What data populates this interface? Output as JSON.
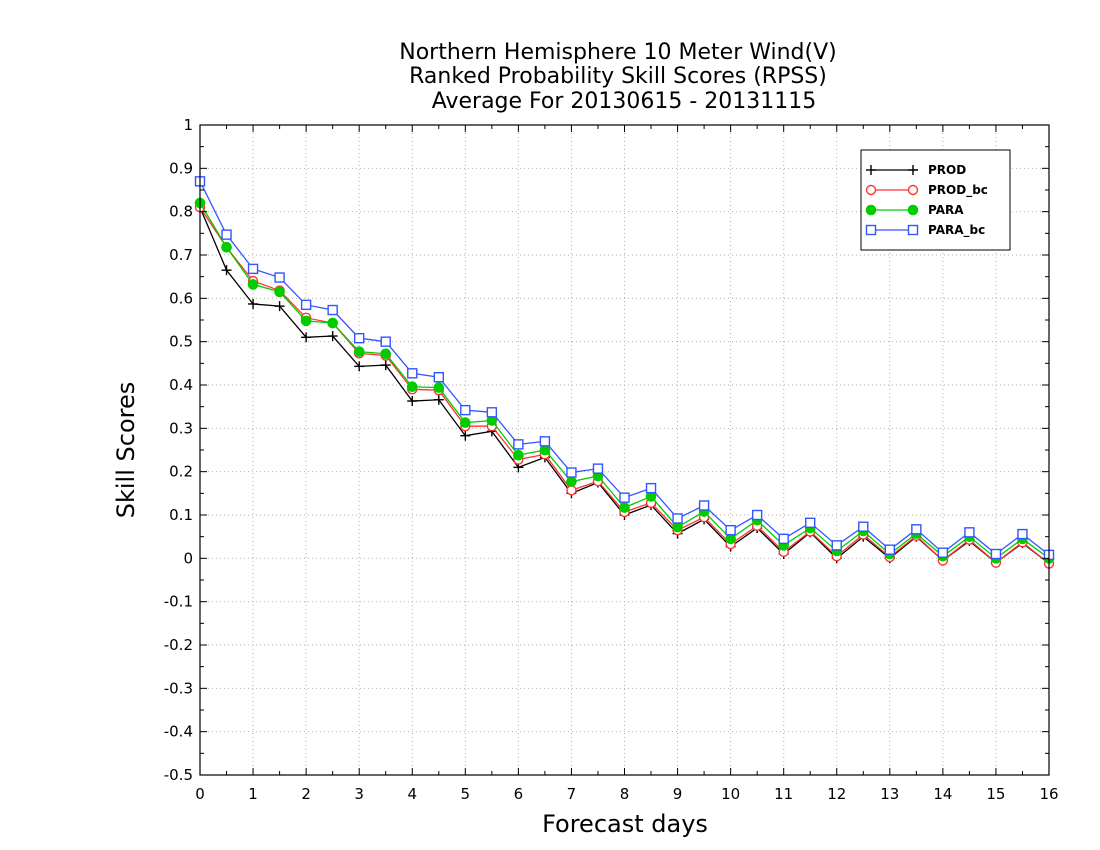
{
  "chart_data": {
    "type": "line",
    "title_lines": [
      "Northern Hemisphere 10 Meter Wind(V)",
      "Ranked Probability Skill Scores (RPSS)",
      "Average For 20130615 - 20131115"
    ],
    "xlabel": "Forecast days",
    "ylabel": "Skill Scores",
    "xlim": [
      0,
      16
    ],
    "ylim": [
      -0.5,
      1
    ],
    "x_ticks": [
      "0",
      "1",
      "2",
      "3",
      "4",
      "5",
      "6",
      "7",
      "8",
      "9",
      "10",
      "11",
      "12",
      "13",
      "14",
      "15",
      "16"
    ],
    "y_ticks": [
      "1",
      "0.9",
      "0.8",
      "0.7",
      "0.6",
      "0.5",
      "0.4",
      "0.3",
      "0.2",
      "0.1",
      "0",
      "-0.1",
      "-0.2",
      "-0.3",
      "-0.4",
      "-0.5"
    ],
    "grid": true,
    "legend_position": "top-right",
    "x": [
      0,
      0.5,
      1,
      1.5,
      2,
      2.5,
      3,
      3.5,
      4,
      4.5,
      5,
      5.5,
      6,
      6.5,
      7,
      7.5,
      8,
      8.5,
      9,
      9.5,
      10,
      10.5,
      11,
      11.5,
      12,
      12.5,
      13,
      13.5,
      14,
      14.5,
      15,
      15.5,
      16
    ],
    "series": [
      {
        "name": "PROD",
        "color": "#000000",
        "marker": "plus",
        "values": [
          0.81,
          0.665,
          0.587,
          0.582,
          0.51,
          0.513,
          0.443,
          0.446,
          0.363,
          0.366,
          0.283,
          0.293,
          0.21,
          0.233,
          0.15,
          0.175,
          0.1,
          0.123,
          0.057,
          0.09,
          0.027,
          0.07,
          0.01,
          0.06,
          0.0,
          0.05,
          0.0,
          0.05,
          -0.005,
          0.04,
          -0.01,
          0.035,
          -0.012
        ]
      },
      {
        "name": "PROD_bc",
        "color": "#ff3333",
        "marker": "open-circle",
        "values": [
          0.81,
          0.718,
          0.64,
          0.618,
          0.555,
          0.543,
          0.473,
          0.468,
          0.39,
          0.388,
          0.305,
          0.305,
          0.228,
          0.24,
          0.157,
          0.178,
          0.107,
          0.128,
          0.065,
          0.095,
          0.033,
          0.075,
          0.015,
          0.062,
          0.005,
          0.055,
          0.003,
          0.052,
          -0.005,
          0.043,
          -0.01,
          0.037,
          -0.012
        ]
      },
      {
        "name": "PARA",
        "color": "#00cc00",
        "marker": "filled-circle",
        "values": [
          0.82,
          0.718,
          0.632,
          0.615,
          0.548,
          0.543,
          0.477,
          0.472,
          0.396,
          0.394,
          0.313,
          0.318,
          0.238,
          0.25,
          0.177,
          0.19,
          0.117,
          0.143,
          0.072,
          0.108,
          0.045,
          0.088,
          0.03,
          0.07,
          0.017,
          0.063,
          0.01,
          0.057,
          0.005,
          0.05,
          0.0,
          0.045,
          0.0
        ]
      },
      {
        "name": "PARA_bc",
        "color": "#3355ff",
        "marker": "open-square",
        "values": [
          0.87,
          0.747,
          0.668,
          0.648,
          0.585,
          0.573,
          0.508,
          0.5,
          0.427,
          0.418,
          0.342,
          0.337,
          0.263,
          0.27,
          0.198,
          0.207,
          0.14,
          0.162,
          0.092,
          0.122,
          0.065,
          0.1,
          0.045,
          0.082,
          0.03,
          0.073,
          0.02,
          0.067,
          0.013,
          0.06,
          0.01,
          0.056,
          0.008
        ]
      }
    ]
  }
}
